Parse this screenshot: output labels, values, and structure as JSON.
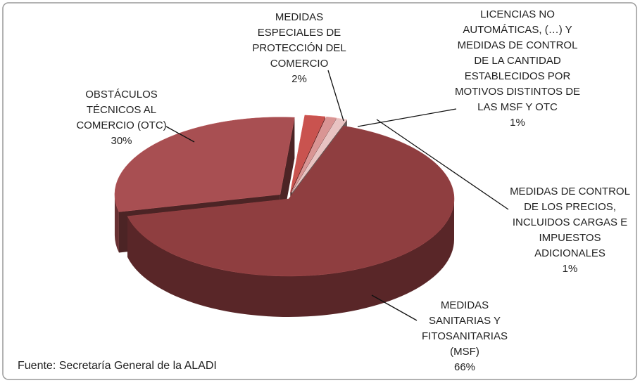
{
  "chart_data": {
    "type": "pie3d",
    "categories": [
      "MEDIDAS ESPECIALES DE PROTECCIÓN DEL COMERCIO",
      "LICENCIAS NO AUTOMÁTICAS, (…) Y MEDIDAS DE CONTROL DE LA CANTIDAD ESTABLECIDOS POR MOTIVOS DISTINTOS DE LAS MSF Y OTC",
      "MEDIDAS DE CONTROL DE LOS PRECIOS, INCLUIDOS CARGAS E IMPUESTOS ADICIONALES",
      "MEDIDAS SANITARIAS Y FITOSANITARIAS (MSF)",
      "OBSTÁCULOS TÉCNICOS AL COMERCIO (OTC)"
    ],
    "values": [
      2,
      1,
      1,
      66,
      30
    ],
    "value_labels": [
      "2%",
      "1%",
      "1%",
      "66%",
      "30%"
    ],
    "colors": [
      "#c9534f",
      "#d99594",
      "#e8c3c2",
      "#8f3e40",
      "#a84f52"
    ],
    "source": "Fuente: Secretaría General de la ALADI"
  }
}
